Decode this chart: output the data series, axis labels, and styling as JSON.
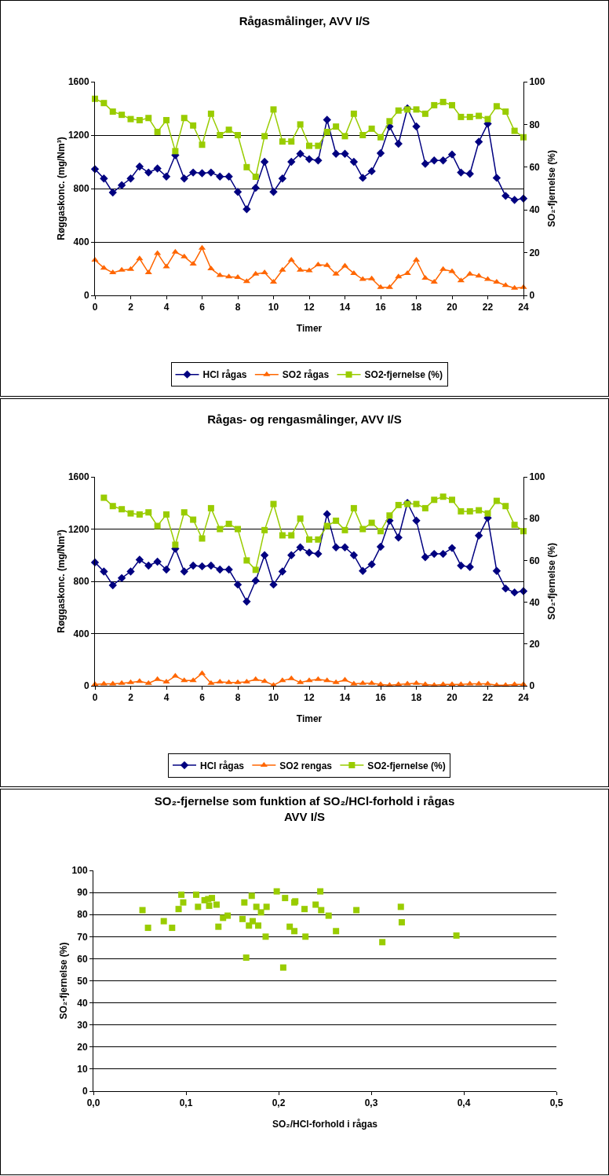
{
  "chart_data": [
    {
      "type": "line",
      "title": "Rågasmålinger, AVV I/S",
      "xlabel": "Timer",
      "ylabel": "Røggaskonc. (mg/Nm³)",
      "y2label": "SO₂-fjernelse (%)",
      "x": [
        0,
        0.5,
        1,
        1.5,
        2,
        2.5,
        3,
        3.5,
        4,
        4.5,
        5,
        5.5,
        6,
        6.5,
        7,
        7.5,
        8,
        8.5,
        9,
        9.5,
        10,
        10.5,
        11,
        11.5,
        12,
        12.5,
        13,
        13.5,
        14,
        14.5,
        15,
        15.5,
        16,
        16.5,
        17,
        17.5,
        18,
        18.5,
        19,
        19.5,
        20,
        20.5,
        21,
        21.5,
        22,
        22.5,
        23,
        23.5,
        24
      ],
      "series": [
        {
          "name": "HCl rågas",
          "color": "#000080",
          "marker": "diamond",
          "values": [
            945,
            875,
            770,
            825,
            875,
            965,
            920,
            950,
            890,
            1050,
            875,
            920,
            915,
            920,
            890,
            890,
            775,
            645,
            805,
            1000,
            775,
            875,
            1000,
            1060,
            1020,
            1010,
            1315,
            1060,
            1060,
            1000,
            880,
            930,
            1065,
            1265,
            1135,
            1400,
            1265,
            985,
            1010,
            1010,
            1055,
            920,
            910,
            1150,
            1285,
            880,
            745,
            715,
            725
          ]
        },
        {
          "name": "SO2 rågas",
          "color": "#ff6600",
          "marker": "triangle",
          "values": [
            265,
            205,
            170,
            190,
            195,
            275,
            170,
            315,
            215,
            325,
            290,
            235,
            355,
            200,
            150,
            140,
            135,
            105,
            160,
            170,
            100,
            190,
            265,
            190,
            185,
            230,
            225,
            160,
            220,
            165,
            120,
            125,
            60,
            60,
            140,
            165,
            265,
            130,
            100,
            195,
            180,
            110,
            160,
            145,
            120,
            100,
            75,
            55,
            60
          ]
        },
        {
          "name": "SO2-fjernelse (%)",
          "color": "#99cc00",
          "marker": "square",
          "axis": "y2",
          "values": [
            92,
            90,
            86,
            84.5,
            82.5,
            82,
            83,
            76.5,
            82,
            67.5,
            83,
            79.5,
            70.5,
            85,
            75,
            77.5,
            75,
            60,
            55.5,
            74.5,
            87,
            72,
            72,
            80,
            70,
            70,
            76.5,
            79,
            74.5,
            85,
            75,
            78,
            74,
            81.5,
            86.5,
            87,
            87,
            85,
            89,
            90.5,
            89,
            83.5,
            83.5,
            84,
            82.5,
            88.5,
            86,
            77,
            74
          ]
        }
      ],
      "xlim": [
        0,
        24
      ],
      "xticks": [
        0,
        2,
        4,
        6,
        8,
        10,
        12,
        14,
        16,
        18,
        20,
        22,
        24
      ],
      "ylim": [
        0,
        1600
      ],
      "yticks": [
        0,
        400,
        800,
        1200,
        1600
      ],
      "y2lim": [
        0,
        100
      ],
      "y2ticks": [
        0,
        20,
        40,
        60,
        80,
        100
      ],
      "grid": "y",
      "legend": "bottom"
    },
    {
      "type": "line",
      "title": "Rågas- og rengasmålinger, AVV I/S",
      "xlabel": "Timer",
      "ylabel": "Røggaskonc. (mg/Nm³)",
      "y2label": "SO₂-fjernelse (%)",
      "x": [
        0,
        0.5,
        1,
        1.5,
        2,
        2.5,
        3,
        3.5,
        4,
        4.5,
        5,
        5.5,
        6,
        6.5,
        7,
        7.5,
        8,
        8.5,
        9,
        9.5,
        10,
        10.5,
        11,
        11.5,
        12,
        12.5,
        13,
        13.5,
        14,
        14.5,
        15,
        15.5,
        16,
        16.5,
        17,
        17.5,
        18,
        18.5,
        19,
        19.5,
        20,
        20.5,
        21,
        21.5,
        22,
        22.5,
        23,
        23.5,
        24
      ],
      "series": [
        {
          "name": "HCl rågas",
          "color": "#000080",
          "marker": "diamond",
          "values": [
            945,
            875,
            770,
            825,
            875,
            965,
            920,
            950,
            890,
            1050,
            875,
            920,
            915,
            920,
            890,
            890,
            775,
            645,
            805,
            1000,
            775,
            875,
            1000,
            1060,
            1020,
            1010,
            1315,
            1060,
            1060,
            1000,
            880,
            930,
            1065,
            1265,
            1135,
            1400,
            1265,
            985,
            1010,
            1010,
            1055,
            920,
            910,
            1150,
            1285,
            880,
            745,
            715,
            725
          ]
        },
        {
          "name": "SO2 rengas",
          "color": "#ff6600",
          "marker": "triangle",
          "values": [
            10,
            15,
            15,
            20,
            25,
            35,
            20,
            50,
            30,
            75,
            40,
            40,
            95,
            20,
            30,
            25,
            25,
            30,
            50,
            35,
            5,
            40,
            55,
            25,
            40,
            50,
            40,
            25,
            45,
            15,
            20,
            20,
            10,
            5,
            10,
            15,
            20,
            10,
            5,
            10,
            10,
            10,
            15,
            15,
            15,
            5,
            5,
            10,
            10
          ]
        },
        {
          "name": "SO2-fjernelse (%)",
          "color": "#99cc00",
          "marker": "square",
          "axis": "y2",
          "values": [
            null,
            90,
            86,
            84.5,
            82.5,
            82,
            83,
            76.5,
            82,
            67.5,
            83,
            79.5,
            70.5,
            85,
            75,
            77.5,
            75,
            60,
            55.5,
            74.5,
            87,
            72,
            72,
            80,
            70,
            70,
            76.5,
            79,
            74.5,
            85,
            75,
            78,
            74,
            81.5,
            86.5,
            87,
            87,
            85,
            89,
            90.5,
            89,
            83.5,
            83.5,
            84,
            82.5,
            88.5,
            86,
            77,
            74
          ]
        }
      ],
      "xlim": [
        0,
        24
      ],
      "xticks": [
        0,
        2,
        4,
        6,
        8,
        10,
        12,
        14,
        16,
        18,
        20,
        22,
        24
      ],
      "ylim": [
        0,
        1600
      ],
      "yticks": [
        0,
        400,
        800,
        1200,
        1600
      ],
      "y2lim": [
        0,
        100
      ],
      "y2ticks": [
        0,
        20,
        40,
        60,
        80,
        100
      ],
      "grid": "y",
      "legend": "bottom"
    },
    {
      "type": "scatter",
      "title": "SO₂-fjernelse som funktion af SO₂/HCl-forhold i rågas\nAVV I/S",
      "xlabel": "SO₂/HCl-forhold i rågas",
      "ylabel": "SO₂-fjernelse (%)",
      "marker": "square",
      "series": [
        {
          "color": "#99cc00",
          "x": [
            0.053,
            0.059,
            0.076,
            0.085,
            0.092,
            0.095,
            0.097,
            0.111,
            0.113,
            0.12,
            0.124,
            0.128,
            0.125,
            0.133,
            0.135,
            0.14,
            0.145,
            0.161,
            0.163,
            0.168,
            0.165,
            0.171,
            0.172,
            0.176,
            0.178,
            0.181,
            0.186,
            0.187,
            0.198,
            0.207,
            0.205,
            0.212,
            0.217,
            0.218,
            0.217,
            0.228,
            0.229,
            0.24,
            0.245,
            0.246,
            0.254,
            0.262,
            0.284,
            0.312,
            0.332,
            0.333,
            0.392
          ],
          "values": [
            82,
            74,
            77,
            74,
            82.5,
            89,
            85.5,
            89,
            83.5,
            86.5,
            87,
            87.5,
            84,
            84.5,
            74.5,
            78.5,
            79.5,
            78,
            85.5,
            75,
            60.5,
            88.5,
            77,
            83.5,
            75,
            81,
            70,
            83.5,
            90.5,
            87.5,
            56,
            74.5,
            85.5,
            86,
            72.5,
            82.5,
            70,
            84.5,
            90.5,
            82,
            79.5,
            72.5,
            82,
            67.5,
            83.5,
            76.5,
            70.5
          ]
        }
      ],
      "xlim": [
        0,
        0.5
      ],
      "xticks": [
        {
          "value": 0,
          "label": "0,0"
        },
        {
          "value": 0.1,
          "label": "0,1"
        },
        {
          "value": 0.2,
          "label": "0,2"
        },
        {
          "value": 0.3,
          "label": "0,3"
        },
        {
          "value": 0.4,
          "label": "0,4"
        },
        {
          "value": 0.5,
          "label": "0,5"
        }
      ],
      "ylim": [
        0,
        100
      ],
      "yticks": [
        0,
        10,
        20,
        30,
        40,
        50,
        60,
        70,
        80,
        90,
        100
      ],
      "grid": "y"
    }
  ]
}
